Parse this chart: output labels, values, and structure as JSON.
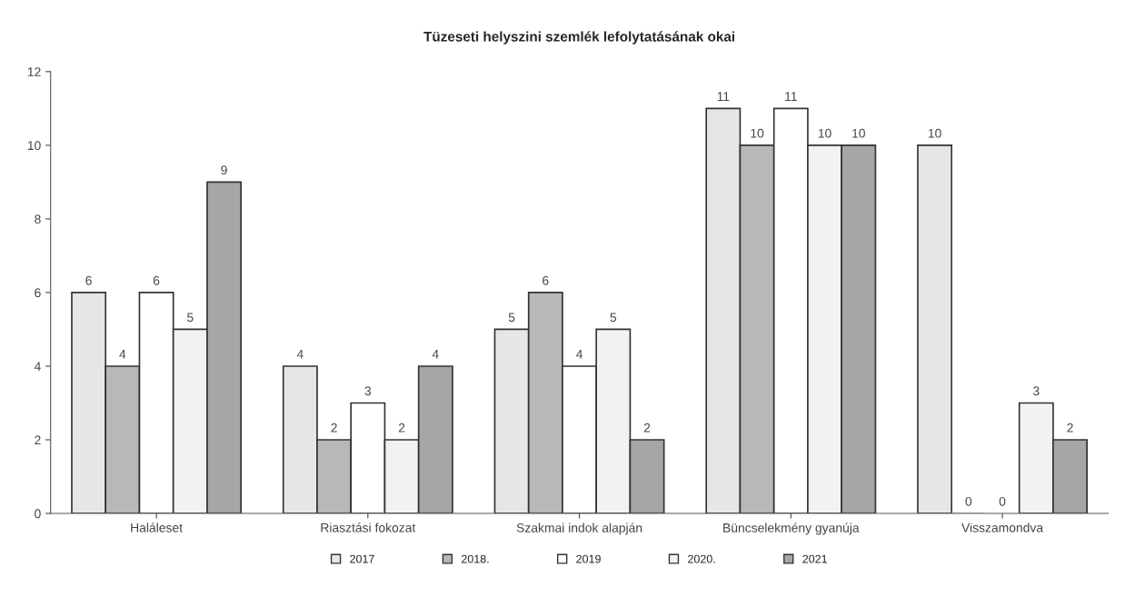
{
  "chart_data": {
    "type": "bar",
    "title": "Tüzeseti helyszini szemlék lefolytatásának okai",
    "categories": [
      "Haláleset",
      "Riasztási fokozat",
      "Szakmai indok alapján",
      "Büncselekmény gyanúja",
      "Visszamondva"
    ],
    "series": [
      {
        "name": "2017",
        "color": "#e6e6e6",
        "values": [
          6,
          4,
          5,
          11,
          10
        ]
      },
      {
        "name": "2018.",
        "color": "#b8b8b8",
        "values": [
          4,
          2,
          6,
          10,
          0
        ]
      },
      {
        "name": "2019",
        "color": "#ffffff",
        "values": [
          6,
          3,
          4,
          11,
          0
        ]
      },
      {
        "name": "2020.",
        "color": "#f2f2f2",
        "values": [
          5,
          2,
          5,
          10,
          3
        ]
      },
      {
        "name": "2021",
        "color": "#a6a6a6",
        "values": [
          9,
          4,
          2,
          10,
          2
        ]
      }
    ],
    "ylim": [
      0,
      12
    ],
    "yticks": [
      0,
      2,
      4,
      6,
      8,
      10,
      12
    ],
    "grid": false,
    "legend": "bottom",
    "data_labels": true
  }
}
